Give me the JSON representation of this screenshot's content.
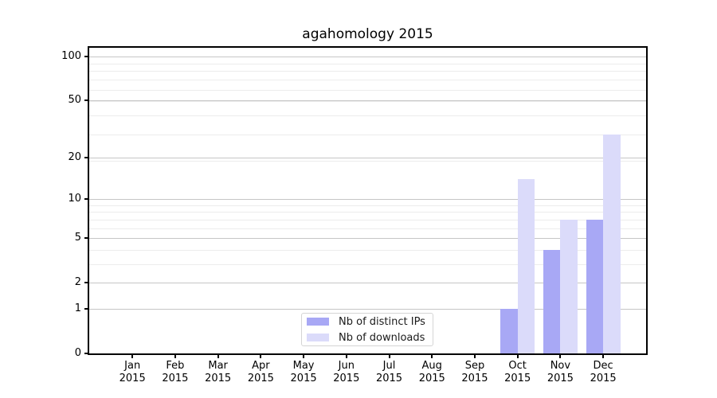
{
  "title": "agahomology 2015",
  "chart_data": {
    "type": "bar",
    "title": "agahomology 2015",
    "months": [
      "Jan",
      "Feb",
      "Mar",
      "Apr",
      "May",
      "Jun",
      "Jul",
      "Aug",
      "Sep",
      "Oct",
      "Nov",
      "Dec"
    ],
    "year": "2015",
    "categories": [
      "Jan 2015",
      "Feb 2015",
      "Mar 2015",
      "Apr 2015",
      "May 2015",
      "Jun 2015",
      "Jul 2015",
      "Aug 2015",
      "Sep 2015",
      "Oct 2015",
      "Nov 2015",
      "Dec 2015"
    ],
    "series": [
      {
        "name": "Nb of distinct IPs",
        "color": "#a8a8f5",
        "values": [
          0,
          0,
          0,
          0,
          0,
          0,
          0,
          0,
          0,
          1,
          4,
          7
        ]
      },
      {
        "name": "Nb of downloads",
        "color": "#dbdbfa",
        "values": [
          0,
          0,
          0,
          0,
          0,
          0,
          0,
          0,
          0,
          14,
          7,
          29
        ]
      }
    ],
    "yscale": "log1p",
    "y_ticks": [
      0,
      1,
      2,
      5,
      10,
      20,
      50,
      100
    ],
    "ylim": [
      0,
      114
    ],
    "grid": true,
    "legend_position": "lower center",
    "colors": {
      "major_grid": "#c6c6c6",
      "minor_grid": "#ececec",
      "axis": "#000000",
      "background": "#ffffff"
    }
  }
}
